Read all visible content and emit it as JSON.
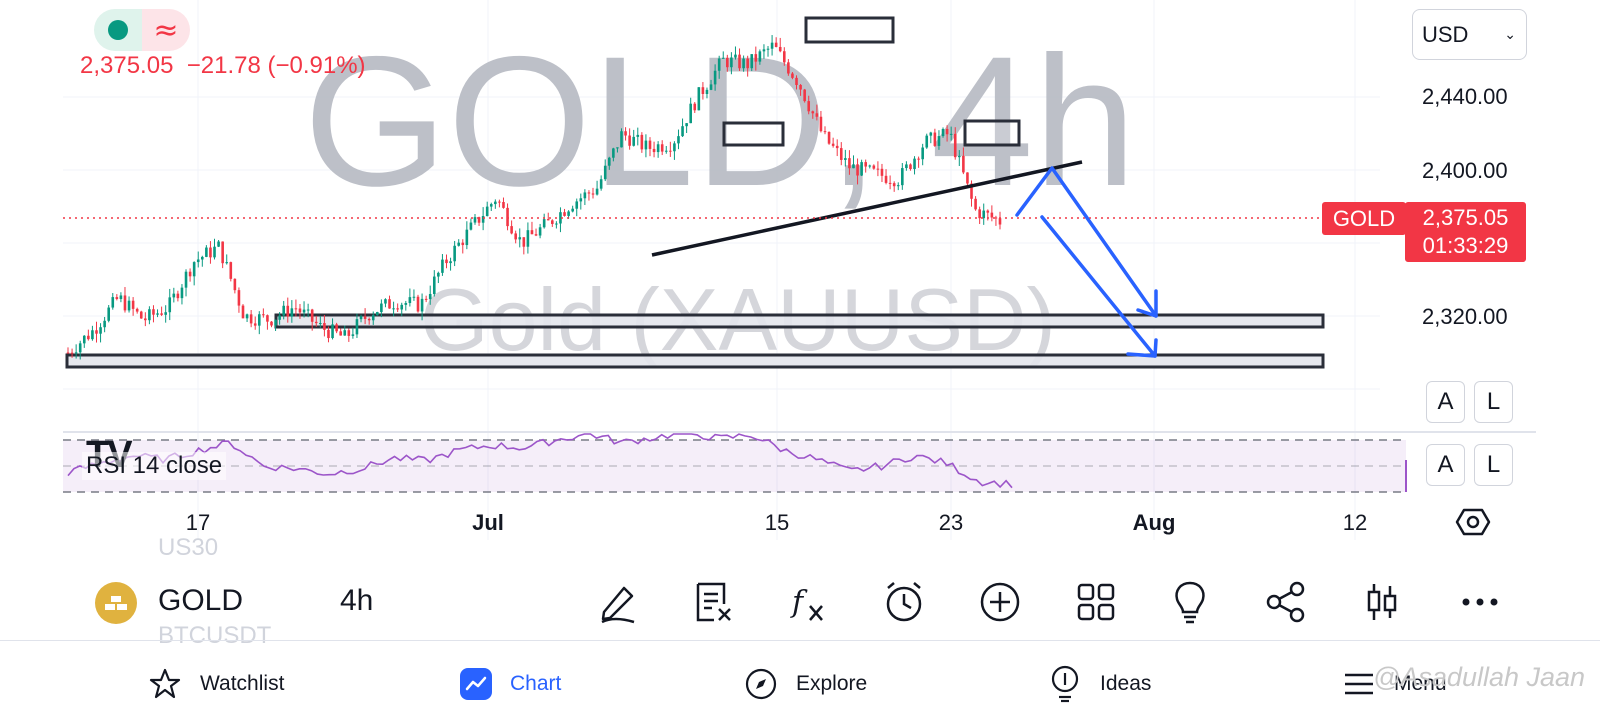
{
  "header": {
    "price_change_line": "2,375.05  −21.78 (−0.91%)",
    "status_icons": [
      "market-open-dot-icon",
      "data-approx-icon"
    ]
  },
  "currency": {
    "selected": "USD"
  },
  "chart": {
    "watermark_symbol": "GOLD, 4h",
    "watermark_desc": "Gold (XAUUSD)",
    "y_ticks": [
      "2,440.00",
      "2,400.00",
      "2,320.00"
    ],
    "symbol_badge": "GOLD",
    "last_price": "2,375.05",
    "countdown": "01:33:29",
    "scale_buttons": {
      "auto": "A",
      "log": "L"
    },
    "x_ticks": [
      "17",
      "Jul",
      "15",
      "23",
      "Aug",
      "12"
    ],
    "rsi_label": "RSI 14 close",
    "tv_logo": "TV",
    "colors": {
      "up": "#089981",
      "down": "#f23645",
      "rsi": "#9c55c9",
      "arrow": "#2962ff"
    }
  },
  "chart_data": {
    "type": "candlestick",
    "symbol": "GOLD",
    "interval": "4h",
    "x": [
      "17",
      "Jul",
      "15",
      "23",
      "Aug",
      "12"
    ],
    "y_ticks": [
      2440,
      2400,
      2320
    ],
    "last_price": 2375.05,
    "change": -21.78,
    "change_pct": -0.91,
    "ohlc_path": [
      2300,
      2312,
      2330,
      2318,
      2325,
      2350,
      2358,
      2320,
      2318,
      2325,
      2314,
      2308,
      2322,
      2328,
      2326,
      2350,
      2368,
      2385,
      2360,
      2370,
      2382,
      2390,
      2420,
      2412,
      2415,
      2440,
      2460,
      2458,
      2468,
      2448,
      2418,
      2402,
      2398,
      2395,
      2415,
      2420,
      2378,
      2372
    ],
    "rsi": [
      45,
      52,
      58,
      55,
      62,
      68,
      50,
      48,
      44,
      48,
      56,
      54,
      62,
      66,
      64,
      70,
      75,
      68,
      72,
      76,
      71,
      74,
      62,
      55,
      46,
      50,
      58,
      52,
      38,
      36
    ]
  },
  "toolbar": {
    "ghost_above": "US30",
    "ghost_below": "BTCUSDT",
    "symbol": "GOLD",
    "interval": "4h",
    "tools": [
      "draw-icon",
      "remove-drawings-icon",
      "indicators-icon",
      "alert-icon",
      "add-icon",
      "layout-icon",
      "ideas-bulb-icon",
      "share-icon",
      "chart-type-icon",
      "more-icon"
    ]
  },
  "nav": {
    "watchlist": "Watchlist",
    "chart": "Chart",
    "explore": "Explore",
    "ideas": "Ideas",
    "menu": "Menu"
  },
  "watermark_credit": "@Asadullah Jaan"
}
